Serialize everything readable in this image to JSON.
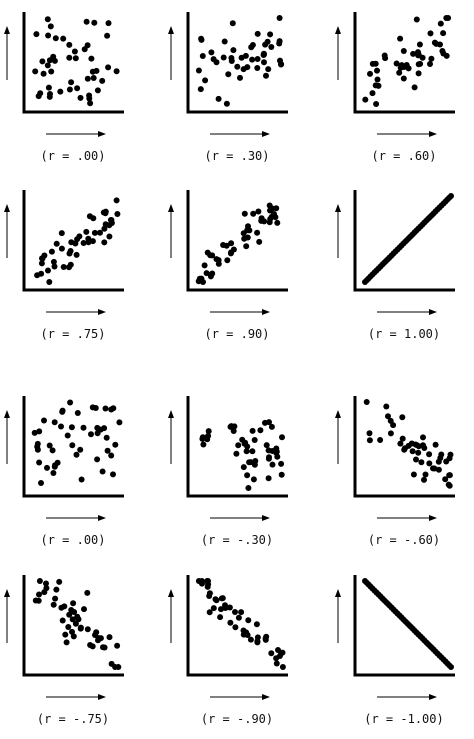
{
  "chart_data": [
    {
      "type": "scatter",
      "caption": "(r = .00)",
      "correlation": 0.0,
      "axis_arrows": true
    },
    {
      "type": "scatter",
      "caption": "(r = .30)",
      "correlation": 0.3,
      "axis_arrows": true
    },
    {
      "type": "scatter",
      "caption": "(r = .60)",
      "correlation": 0.6,
      "axis_arrows": true
    },
    {
      "type": "scatter",
      "caption": "(r = .75)",
      "correlation": 0.75,
      "axis_arrows": true
    },
    {
      "type": "scatter",
      "caption": "(r = .90)",
      "correlation": 0.9,
      "axis_arrows": true
    },
    {
      "type": "scatter",
      "caption": "(r = 1.00)",
      "correlation": 1.0,
      "axis_arrows": true
    },
    {
      "type": "scatter",
      "caption": "(r = .00)",
      "correlation": 0.0,
      "axis_arrows": true
    },
    {
      "type": "scatter",
      "caption": "(r = -.30)",
      "correlation": -0.3,
      "axis_arrows": true
    },
    {
      "type": "scatter",
      "caption": "(r = -.60)",
      "correlation": -0.6,
      "axis_arrows": true
    },
    {
      "type": "scatter",
      "caption": "(r = -.75)",
      "correlation": -0.75,
      "axis_arrows": true
    },
    {
      "type": "scatter",
      "caption": "(r = -.90)",
      "correlation": -0.9,
      "axis_arrows": true
    },
    {
      "type": "scatter",
      "caption": "(r = -1.00)",
      "correlation": -1.0,
      "axis_arrows": true
    }
  ]
}
